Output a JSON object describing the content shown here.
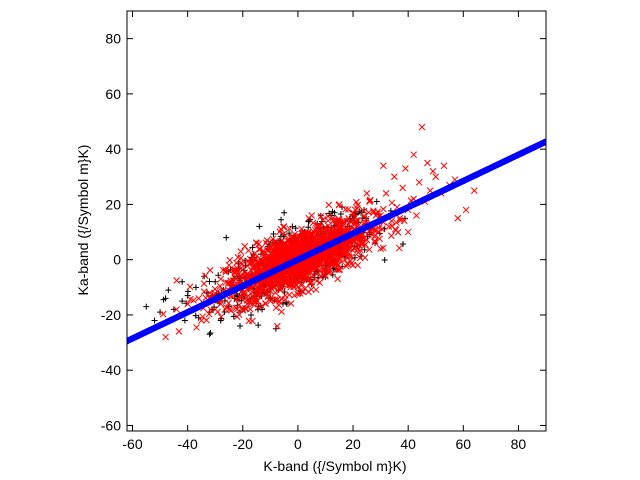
{
  "chart_data": {
    "type": "scatter",
    "xlabel": "K-band ({/Symbol m}K)",
    "ylabel": "Ka-band ({/Symbol m}K)",
    "xlim": [
      -62,
      90
    ],
    "ylim": [
      -62,
      90
    ],
    "x_ticks": [
      -60,
      -40,
      -20,
      0,
      20,
      40,
      60,
      80
    ],
    "y_ticks": [
      -60,
      -40,
      -20,
      0,
      20,
      40,
      60,
      80
    ],
    "grid": false,
    "legend": "none",
    "series": [
      {
        "marker": "plus",
        "color": "#000000",
        "description_points": "dense elongated cloud centered near origin",
        "points": [
          [
            -55,
            -17
          ],
          [
            -52,
            -22
          ],
          [
            -50,
            -19
          ],
          [
            -48,
            -14
          ],
          [
            -47,
            -11
          ],
          [
            -45,
            -18
          ],
          [
            -43,
            -20
          ],
          [
            -42,
            -15
          ],
          [
            -41,
            -22
          ],
          [
            -40,
            -13
          ],
          [
            -38,
            -18
          ],
          [
            -37,
            -10
          ],
          [
            -36,
            -21
          ],
          [
            -35,
            -16
          ],
          [
            -34,
            -6
          ],
          [
            -33,
            -12
          ],
          [
            -32,
            -19
          ],
          [
            -31,
            -13
          ],
          [
            -30,
            -8
          ],
          [
            -29,
            -15
          ],
          [
            -28,
            -22
          ],
          [
            -27,
            -11
          ],
          [
            -26,
            -4
          ],
          [
            -25,
            -17
          ],
          [
            -24,
            -9
          ],
          [
            -23,
            -14
          ],
          [
            -22,
            -6
          ],
          [
            -21,
            -19
          ],
          [
            -20,
            -10
          ],
          [
            -19,
            -2
          ],
          [
            -18,
            -15
          ],
          [
            -17,
            -8
          ],
          [
            -16,
            2
          ],
          [
            -15,
            -12
          ],
          [
            -14,
            -5
          ],
          [
            -13,
            -18
          ],
          [
            -12,
            -9
          ],
          [
            -11,
            4
          ],
          [
            -10,
            -14
          ],
          [
            -9,
            -3
          ],
          [
            -8,
            6
          ],
          [
            -7,
            -11
          ],
          [
            -6,
            -6
          ],
          [
            -5,
            9
          ],
          [
            -4,
            -16
          ],
          [
            -3,
            -1
          ],
          [
            -2,
            12
          ],
          [
            -1,
            -8
          ],
          [
            0,
            3
          ],
          [
            1,
            -12
          ],
          [
            2,
            7
          ],
          [
            3,
            -4
          ],
          [
            4,
            14
          ],
          [
            5,
            -9
          ],
          [
            6,
            5
          ],
          [
            7,
            -1
          ],
          [
            8,
            11
          ],
          [
            9,
            -6
          ],
          [
            10,
            8
          ],
          [
            11,
            2
          ],
          [
            12,
            16
          ],
          [
            13,
            -3
          ],
          [
            14,
            10
          ],
          [
            15,
            4
          ],
          [
            16,
            19
          ],
          [
            17,
            1
          ],
          [
            18,
            12
          ],
          [
            19,
            7
          ],
          [
            20,
            15
          ],
          [
            22,
            9
          ],
          [
            24,
            18
          ],
          [
            26,
            11
          ],
          [
            28,
            6
          ],
          [
            30,
            14
          ],
          [
            -32,
            -27
          ],
          [
            -21,
            -24
          ],
          [
            -8,
            -25
          ],
          [
            -42,
            -8
          ],
          [
            -26,
            8
          ],
          [
            -14,
            12
          ],
          [
            -5,
            17
          ],
          [
            -22,
            -13
          ],
          [
            -17,
            -20
          ],
          [
            -11,
            -7
          ],
          [
            -6,
            -2
          ],
          [
            -3,
            5
          ],
          [
            1,
            9
          ],
          [
            4,
            -1
          ],
          [
            7,
            13
          ],
          [
            10,
            -2
          ]
        ]
      },
      {
        "marker": "x",
        "color": "#ff0000",
        "description_points": "dense elongated cloud centered near origin",
        "points": [
          [
            -48,
            -28
          ],
          [
            -44,
            -18
          ],
          [
            -40,
            -16
          ],
          [
            -36,
            -14
          ],
          [
            -32,
            -12
          ],
          [
            -30,
            -18
          ],
          [
            -28,
            -7
          ],
          [
            -26,
            -13
          ],
          [
            -24,
            -10
          ],
          [
            -22,
            -4
          ],
          [
            -20,
            -12
          ],
          [
            -18,
            -6
          ],
          [
            -16,
            0
          ],
          [
            -14,
            -9
          ],
          [
            -12,
            -3
          ],
          [
            -10,
            4
          ],
          [
            -8,
            -7
          ],
          [
            -6,
            1
          ],
          [
            -4,
            7
          ],
          [
            -2,
            -4
          ],
          [
            0,
            2
          ],
          [
            2,
            9
          ],
          [
            4,
            -2
          ],
          [
            6,
            5
          ],
          [
            8,
            12
          ],
          [
            10,
            1
          ],
          [
            12,
            7
          ],
          [
            14,
            14
          ],
          [
            16,
            4
          ],
          [
            18,
            10
          ],
          [
            20,
            17
          ],
          [
            22,
            8
          ],
          [
            24,
            13
          ],
          [
            26,
            21
          ],
          [
            28,
            11
          ],
          [
            30,
            16
          ],
          [
            32,
            24
          ],
          [
            34,
            14
          ],
          [
            36,
            19
          ],
          [
            38,
            26
          ],
          [
            40,
            18
          ],
          [
            42,
            22
          ],
          [
            44,
            28
          ],
          [
            46,
            21
          ],
          [
            48,
            25
          ],
          [
            50,
            30
          ],
          [
            52,
            24
          ],
          [
            55,
            27
          ],
          [
            58,
            15
          ],
          [
            61,
            18
          ],
          [
            64,
            25
          ],
          [
            45,
            48
          ],
          [
            31,
            34
          ],
          [
            42,
            38
          ],
          [
            49,
            32
          ],
          [
            53,
            34
          ],
          [
            57,
            29
          ],
          [
            35,
            30
          ],
          [
            47,
            35
          ],
          [
            39,
            33
          ],
          [
            -25,
            -2
          ],
          [
            -15,
            6
          ],
          [
            -5,
            12
          ],
          [
            5,
            16
          ],
          [
            15,
            20
          ],
          [
            25,
            24
          ],
          [
            -35,
            -22
          ],
          [
            -20,
            -18
          ],
          [
            -10,
            -14
          ],
          [
            0,
            -10
          ],
          [
            10,
            -6
          ],
          [
            20,
            -2
          ],
          [
            30,
            4
          ],
          [
            40,
            10
          ],
          [
            -3,
            -1
          ],
          [
            3,
            3
          ],
          [
            7,
            -3
          ],
          [
            -7,
            3
          ],
          [
            13,
            1
          ],
          [
            -13,
            -6
          ],
          [
            17,
            2
          ],
          [
            23,
            6
          ],
          [
            27,
            9
          ],
          [
            33,
            12
          ],
          [
            37,
            15
          ],
          [
            43,
            16
          ],
          [
            -28,
            -16
          ],
          [
            -18,
            -9
          ],
          [
            -8,
            -1
          ],
          [
            8,
            6
          ]
        ]
      },
      {
        "marker": "circle",
        "color": "#0000ff",
        "description_points": "linear fit line y = 0.475x",
        "slope": 0.475,
        "intercept": 0,
        "x_range": [
          -62,
          90
        ]
      }
    ]
  }
}
